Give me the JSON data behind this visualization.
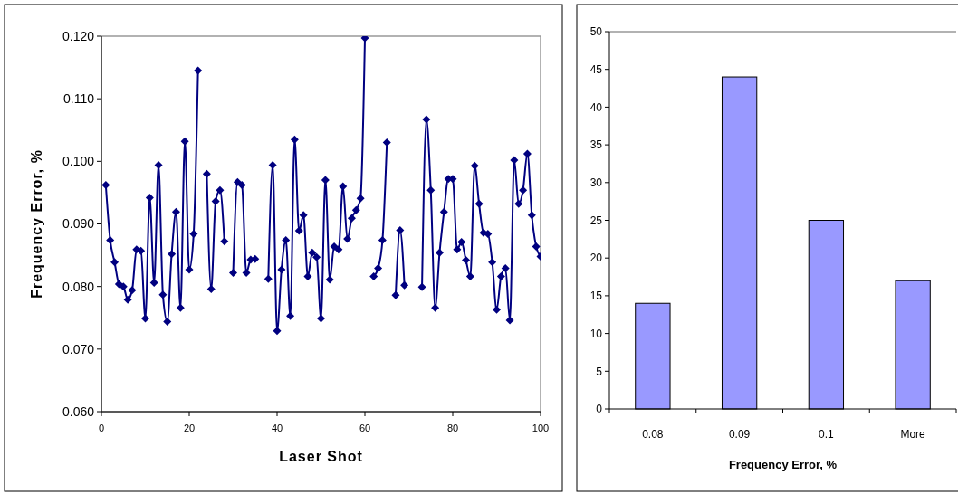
{
  "chart_data": [
    {
      "type": "line",
      "xlabel": "Laser Shot",
      "ylabel": "Frequency Error, %",
      "marker": "diamond",
      "grid": false,
      "xlim": [
        0,
        100
      ],
      "xticks": [
        0,
        20,
        40,
        60,
        80,
        100
      ],
      "ylim": [
        0.06,
        0.12
      ],
      "yticks": [
        {
          "value": 0.06,
          "label": "0.060"
        },
        {
          "value": 0.07,
          "label": "0.070"
        },
        {
          "value": 0.08,
          "label": "0.080"
        },
        {
          "value": 0.09,
          "label": "0.090"
        },
        {
          "value": 0.1,
          "label": "0.100"
        },
        {
          "value": 0.11,
          "label": "0.110"
        },
        {
          "value": 0.12,
          "label": "0.120"
        }
      ],
      "x": [
        1,
        2,
        3,
        4,
        5,
        6,
        7,
        8,
        9,
        10,
        11,
        12,
        13,
        14,
        15,
        16,
        17,
        18,
        19,
        20,
        21,
        22,
        23,
        24,
        25,
        26,
        27,
        28,
        29,
        30,
        31,
        32,
        33,
        34,
        35,
        36,
        37,
        38,
        39,
        40,
        41,
        42,
        43,
        44,
        45,
        46,
        47,
        48,
        49,
        50,
        51,
        52,
        53,
        54,
        55,
        56,
        57,
        58,
        59,
        60,
        61,
        62,
        63,
        64,
        65,
        66,
        67,
        68,
        69,
        70,
        71,
        72,
        73,
        74,
        75,
        76,
        77,
        78,
        79,
        80,
        81,
        82,
        83,
        84,
        85,
        86,
        87,
        88,
        89,
        90,
        91,
        92,
        93,
        94,
        95,
        96,
        97,
        98,
        99,
        100
      ],
      "series": [
        {
          "color": "#000080",
          "values": [
            0.0962,
            0.0874,
            0.0839,
            0.0804,
            0.08,
            0.0779,
            0.0794,
            0.0859,
            0.0857,
            0.0749,
            0.0942,
            0.0806,
            0.0994,
            0.0787,
            0.0744,
            0.0852,
            0.0919,
            0.0766,
            0.1032,
            0.0827,
            0.0884,
            0.1145,
            null,
            0.098,
            0.0796,
            0.0936,
            0.0954,
            0.0872,
            null,
            0.0822,
            0.0967,
            0.0962,
            0.0822,
            0.0843,
            0.0844,
            null,
            null,
            0.0812,
            0.0994,
            0.0729,
            0.0827,
            0.0874,
            0.0753,
            0.1035,
            0.0889,
            0.0914,
            0.0816,
            0.0854,
            0.0847,
            0.0749,
            0.097,
            0.0811,
            0.0864,
            0.0859,
            0.096,
            0.0876,
            0.0909,
            0.0922,
            0.0941,
            0.1197,
            null,
            0.0816,
            0.0829,
            0.0874,
            0.103,
            null,
            0.0786,
            0.089,
            0.0802,
            null,
            null,
            null,
            0.0799,
            0.1067,
            0.0954,
            0.0766,
            0.0854,
            0.0919,
            0.0972,
            0.0972,
            0.0859,
            0.0871,
            0.0842,
            0.0816,
            0.0993,
            0.0932,
            0.0886,
            0.0884,
            0.0839,
            0.0763,
            0.0816,
            0.0829,
            0.0746,
            0.1002,
            0.0932,
            0.0954,
            0.1012,
            0.0914,
            0.0864,
            0.0848
          ]
        }
      ]
    },
    {
      "type": "bar",
      "xlabel": "Frequency Error, %",
      "grid": false,
      "categories": [
        "0.08",
        "0.09",
        "0.1",
        "More"
      ],
      "ylim": [
        0,
        50
      ],
      "yticks": [
        0,
        5,
        10,
        15,
        20,
        25,
        30,
        35,
        40,
        45,
        50
      ],
      "series": [
        {
          "color": "#9999ff",
          "values": [
            14,
            44,
            25,
            17
          ]
        }
      ]
    }
  ]
}
